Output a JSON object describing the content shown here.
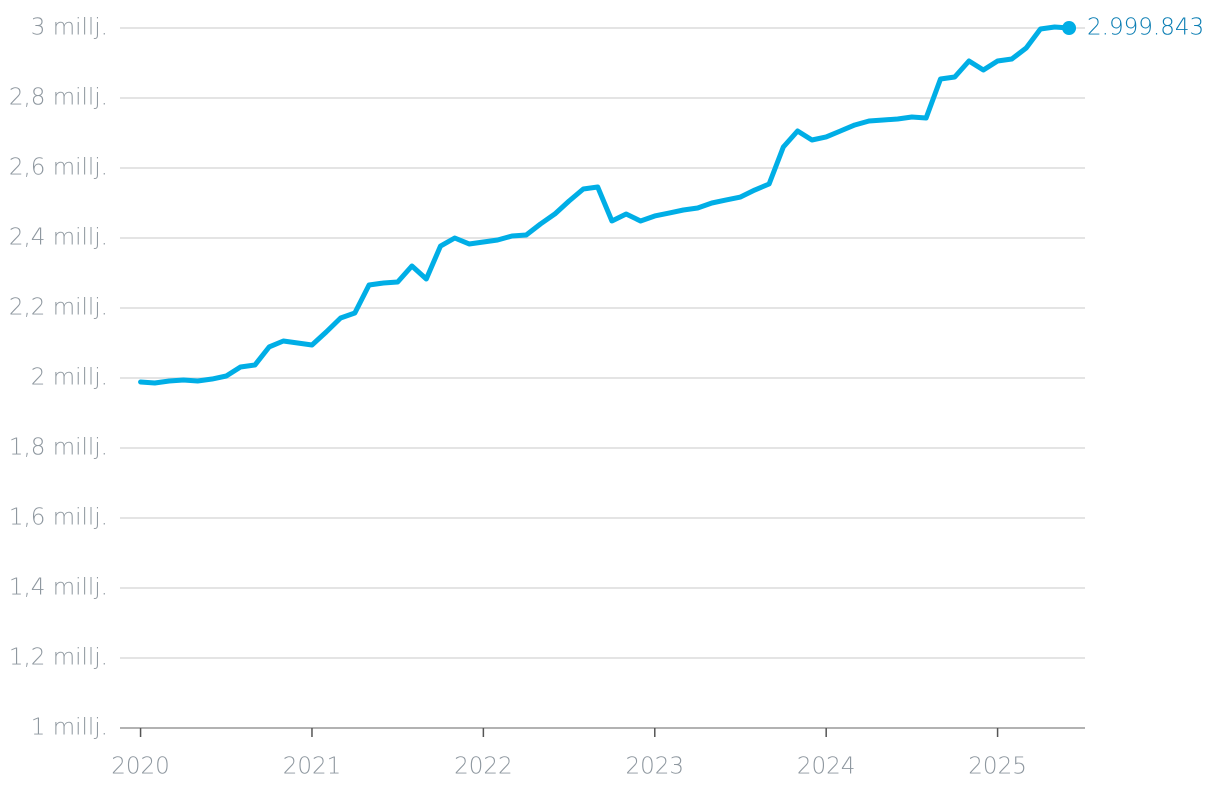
{
  "chart_data": {
    "type": "line",
    "x": [
      2020,
      2020.083,
      2020.167,
      2020.25,
      2020.333,
      2020.417,
      2020.5,
      2020.583,
      2020.667,
      2020.75,
      2020.833,
      2020.917,
      2021,
      2021.083,
      2021.167,
      2021.25,
      2021.333,
      2021.417,
      2021.5,
      2021.583,
      2021.667,
      2021.75,
      2021.833,
      2021.917,
      2022,
      2022.083,
      2022.167,
      2022.25,
      2022.333,
      2022.417,
      2022.5,
      2022.583,
      2022.667,
      2022.75,
      2022.833,
      2022.917,
      2023,
      2023.083,
      2023.167,
      2023.25,
      2023.333,
      2023.417,
      2023.5,
      2023.583,
      2023.667,
      2023.75,
      2023.833,
      2023.917,
      2024,
      2024.083,
      2024.167,
      2024.25,
      2024.333,
      2024.417,
      2024.5,
      2024.583,
      2024.667,
      2024.75,
      2024.833,
      2024.917,
      2025,
      2025.083,
      2025.167,
      2025.25,
      2025.333,
      2025.417
    ],
    "series": [
      {
        "color": "#00aee6",
        "values": [
          1988600,
          1985700,
          1991400,
          1994300,
          1991400,
          1997100,
          2005700,
          2031400,
          2037100,
          2088600,
          2105700,
          2100000,
          2094300,
          2131400,
          2171400,
          2185700,
          2265700,
          2271400,
          2274300,
          2320000,
          2282900,
          2377100,
          2400000,
          2382900,
          2388600,
          2394300,
          2405700,
          2408600,
          2440000,
          2468600,
          2505700,
          2540000,
          2545700,
          2448600,
          2468600,
          2448600,
          2462900,
          2471400,
          2480000,
          2485700,
          2500000,
          2508600,
          2517100,
          2537100,
          2554300,
          2660000,
          2705700,
          2680000,
          2688600,
          2705700,
          2722900,
          2734300,
          2737100,
          2740000,
          2745700,
          2742900,
          2854300,
          2860000,
          2905700,
          2880000,
          2905700,
          2911400,
          2942900,
          2997100,
          3002900,
          2999843
        ],
        "value_labels": [
          null,
          null,
          null,
          null,
          null,
          null,
          null,
          null,
          null,
          null,
          null,
          null,
          null,
          null,
          null,
          null,
          null,
          null,
          null,
          null,
          null,
          null,
          null,
          null,
          null,
          null,
          null,
          null,
          null,
          null,
          null,
          null,
          null,
          null,
          null,
          null,
          null,
          null,
          null,
          null,
          null,
          null,
          null,
          null,
          null,
          null,
          null,
          null,
          null,
          null,
          null,
          null,
          null,
          null,
          null,
          null,
          null,
          null,
          null,
          null,
          null,
          null,
          null,
          null,
          null,
          "2.999.843"
        ]
      }
    ],
    "xlim": [
      2019.88,
      2025.51
    ],
    "xticks": [
      2020,
      2021,
      2022,
      2023,
      2024,
      2025
    ],
    "ylim": [
      1000000,
      3000000
    ],
    "yticks": [
      {
        "value": 1000000,
        "label": "1 millj."
      },
      {
        "value": 1200000,
        "label": "1,2 millj."
      },
      {
        "value": 1400000,
        "label": "1,4 millj."
      },
      {
        "value": 1600000,
        "label": "1,6 millj."
      },
      {
        "value": 1800000,
        "label": "1,8 millj."
      },
      {
        "value": 2000000,
        "label": "2 millj."
      },
      {
        "value": 2200000,
        "label": "2,2 millj."
      },
      {
        "value": 2400000,
        "label": "2,4 millj."
      },
      {
        "value": 2600000,
        "label": "2,6 millj."
      },
      {
        "value": 2800000,
        "label": "2,8 millj."
      },
      {
        "value": 3000000,
        "label": "3 millj."
      }
    ],
    "grid": true
  }
}
